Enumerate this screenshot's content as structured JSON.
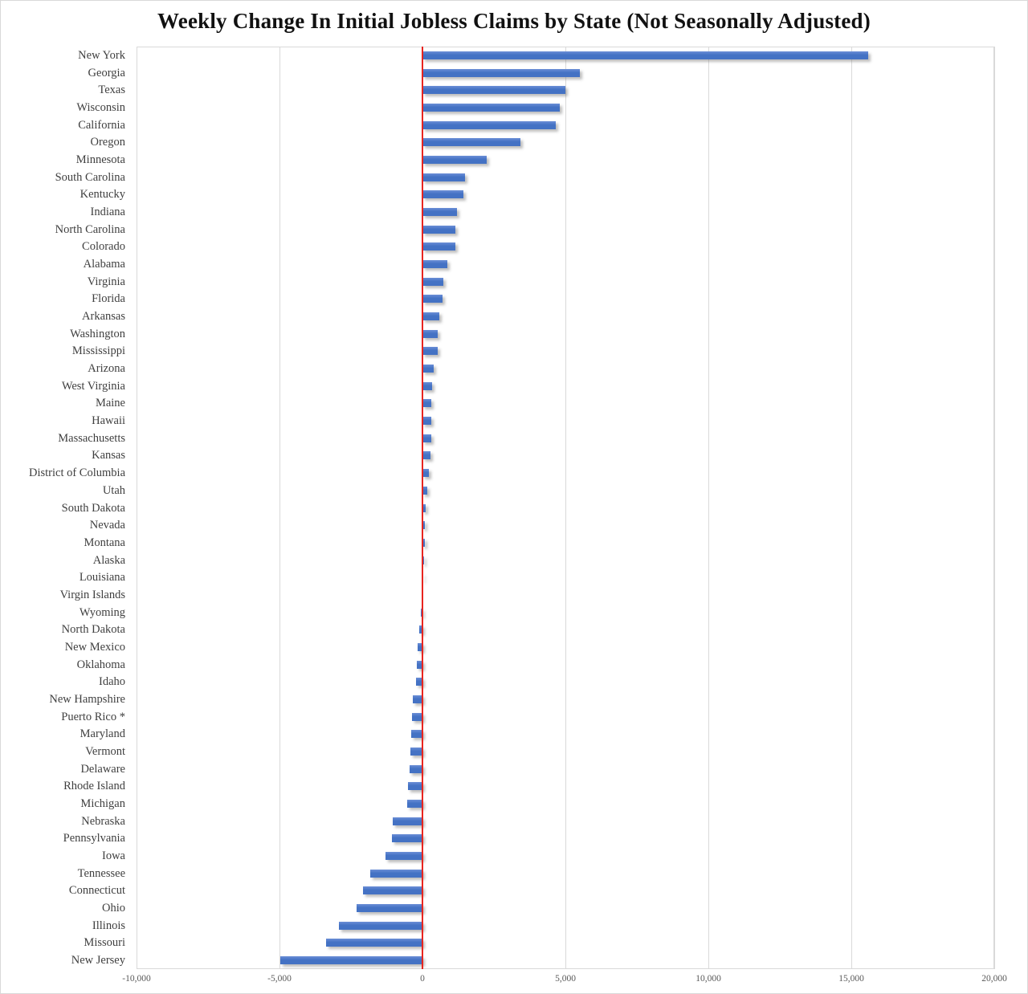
{
  "title": "Weekly Change In Initial Jobless Claims by State (Not Seasonally Adjusted)",
  "chart_data": {
    "type": "bar",
    "orientation": "horizontal",
    "title": "Weekly Change In Initial Jobless Claims by State (Not Seasonally Adjusted)",
    "xlabel": "",
    "ylabel": "",
    "grid": true,
    "legend": false,
    "bar_color": "#4472c4",
    "zero_line_color": "#e8251f",
    "gridline_color": "#d9d9d9",
    "x_axis": {
      "min": -10000,
      "max": 20000,
      "tick_values": [
        -10000,
        -5000,
        0,
        5000,
        10000,
        15000,
        20000
      ],
      "tick_labels": [
        "-10,000",
        "-5,000",
        "0",
        "5,000",
        "10,000",
        "15,000",
        "20,000"
      ]
    },
    "categories": [
      "New York",
      "Georgia",
      "Texas",
      "Wisconsin",
      "California",
      "Oregon",
      "Minnesota",
      "South Carolina",
      "Kentucky",
      "Indiana",
      "North Carolina",
      "Colorado",
      "Alabama",
      "Virginia",
      "Florida",
      "Arkansas",
      "Washington",
      "Mississippi",
      "Arizona",
      "West Virginia",
      "Maine",
      "Hawaii",
      "Massachusetts",
      "Kansas",
      "District of Columbia",
      "Utah",
      "South Dakota",
      "Nevada",
      "Montana",
      "Alaska",
      "Louisiana",
      "Virgin Islands",
      "Wyoming",
      "North Dakota",
      "New Mexico",
      "Oklahoma",
      "Idaho",
      "New Hampshire",
      "Puerto Rico *",
      "Maryland",
      "Vermont",
      "Delaware",
      "Rhode Island",
      "Michigan",
      "Nebraska",
      "Pennsylvania",
      "Iowa",
      "Tennessee",
      "Connecticut",
      "Ohio",
      "Illinois",
      "Missouri",
      "New Jersey"
    ],
    "values": [
      15600,
      5500,
      5000,
      4790,
      4660,
      3440,
      2250,
      1480,
      1420,
      1210,
      1150,
      1140,
      870,
      720,
      700,
      600,
      540,
      530,
      400,
      340,
      320,
      310,
      300,
      270,
      230,
      160,
      110,
      90,
      80,
      70,
      20,
      0,
      -65,
      -110,
      -170,
      -210,
      -220,
      -340,
      -370,
      -390,
      -410,
      -460,
      -500,
      -520,
      -1030,
      -1060,
      -1290,
      -1820,
      -2070,
      -2300,
      -2930,
      -3370,
      -4980
    ]
  }
}
